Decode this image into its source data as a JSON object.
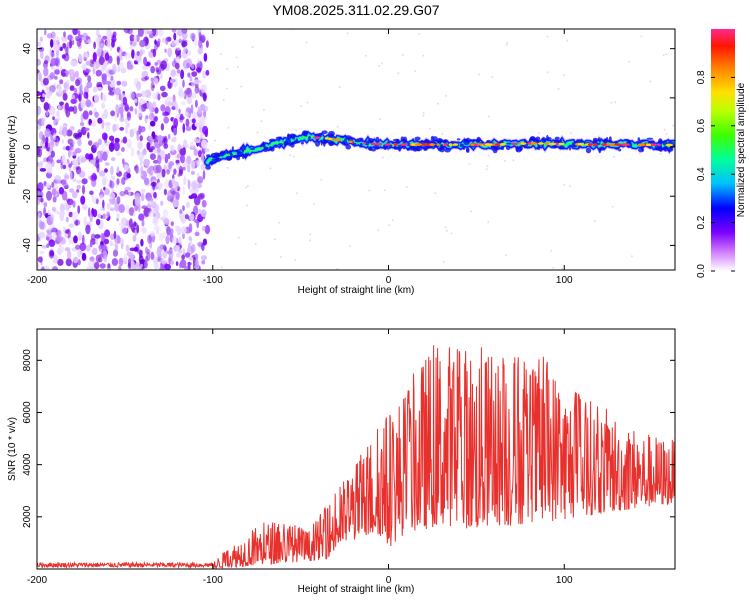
{
  "title": "YM08.2025.311.02.29.G07",
  "colors": {
    "line": "#e8302c",
    "axis": "#000000",
    "background": "#ffffff"
  },
  "chart_data": [
    {
      "type": "heatmap",
      "name": "spectrogram",
      "xlabel": "Height of straight line (km)",
      "ylabel": "Frequency (Hz)",
      "xlim": [
        -200,
        163
      ],
      "ylim": [
        -50,
        48
      ],
      "x_ticks": [
        "-200",
        "-100",
        "0",
        "100"
      ],
      "y_ticks": [
        "40",
        "20",
        "0",
        "-20",
        "-40"
      ],
      "x_tick_values": [
        -200,
        -100,
        0,
        100
      ],
      "y_tick_values": [
        40,
        20,
        0,
        -20,
        -40
      ],
      "noise_region_x": [
        -200,
        -103
      ],
      "signal_track": {
        "x": [
          -103,
          -95,
          -85,
          -75,
          -65,
          -55,
          -45,
          -35,
          -25,
          -15,
          0,
          20,
          40,
          60,
          80,
          100,
          120,
          140,
          163
        ],
        "frequency": [
          -6,
          -4,
          -2,
          -1,
          1,
          3,
          4,
          3.5,
          2.5,
          1.5,
          1,
          1,
          1,
          1,
          1.5,
          1.2,
          1,
          1,
          0.8
        ]
      },
      "colorbar": {
        "label": "Normalized spectral amplitude",
        "range": [
          0,
          1
        ],
        "ticks": [
          "0.0",
          "0.2",
          "0.4",
          "0.6",
          "0.8"
        ],
        "tick_values": [
          0.0,
          0.2,
          0.4,
          0.6,
          0.8
        ]
      }
    },
    {
      "type": "line",
      "name": "snr",
      "xlabel": "Height of straight line (km)",
      "ylabel": "SNR (10 * v/v)",
      "xlim": [
        -200,
        163
      ],
      "ylim": [
        0,
        9200
      ],
      "x_ticks": [
        "-200",
        "-100",
        "0",
        "100"
      ],
      "y_ticks": [
        "2000",
        "4000",
        "6000",
        "8000"
      ],
      "x_tick_values": [
        -200,
        -100,
        0,
        100
      ],
      "y_tick_values": [
        2000,
        4000,
        6000,
        8000
      ],
      "envelope": {
        "x": [
          -200,
          -100,
          -95,
          -85,
          -75,
          -65,
          -55,
          -45,
          -35,
          -25,
          -15,
          -5,
          0,
          10,
          20,
          30,
          40,
          50,
          60,
          70,
          80,
          90,
          100,
          110,
          120,
          130,
          140,
          150,
          163
        ],
        "low": [
          0,
          0,
          50,
          80,
          150,
          200,
          250,
          300,
          400,
          1000,
          1200,
          1300,
          800,
          1400,
          1500,
          1700,
          1600,
          1500,
          1700,
          1600,
          1800,
          1800,
          1900,
          2000,
          2100,
          2200,
          2300,
          2400,
          2500
        ],
        "high": [
          250,
          250,
          600,
          1200,
          1700,
          1900,
          1800,
          1500,
          2500,
          3500,
          4500,
          5800,
          6200,
          7000,
          8200,
          9000,
          8600,
          8800,
          8200,
          8700,
          7800,
          8300,
          7200,
          6800,
          6300,
          6000,
          5500,
          5200,
          5000
        ]
      }
    }
  ]
}
